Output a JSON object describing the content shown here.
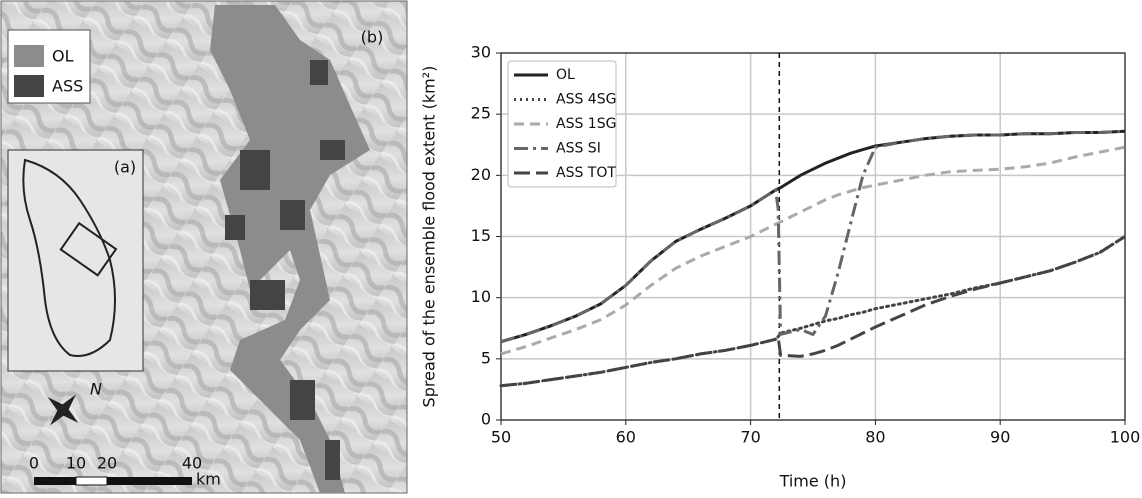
{
  "map": {
    "panel_label": "(b)",
    "inset_label": "(a)",
    "north": "N",
    "legend": [
      {
        "label": "OL",
        "color": "#8c8c8c"
      },
      {
        "label": "ASS",
        "color": "#444444"
      }
    ],
    "scale": [
      "0",
      "10",
      "20",
      "40"
    ],
    "scale_unit": "km"
  },
  "chart_data": {
    "type": "line",
    "xlabel": "Time (h)",
    "ylabel": "Spread of the ensemble flood extent (km²)",
    "x": [
      50,
      52,
      54,
      56,
      58,
      60,
      62,
      64,
      66,
      68,
      70,
      72,
      72.2,
      72.4,
      74,
      75,
      76,
      77,
      78,
      79,
      80,
      82,
      84,
      86,
      88,
      90,
      92,
      94,
      96,
      98,
      100
    ],
    "series": [
      {
        "name": "OL",
        "color": "#222222",
        "dash": "solid",
        "values": [
          6.4,
          7.0,
          7.7,
          8.5,
          9.5,
          11.0,
          13.0,
          14.6,
          15.6,
          16.5,
          17.5,
          18.8,
          18.9,
          19.0,
          20.0,
          20.5,
          21.0,
          21.4,
          21.8,
          22.1,
          22.4,
          22.7,
          23.0,
          23.2,
          23.3,
          23.3,
          23.4,
          23.4,
          23.5,
          23.5,
          23.6
        ]
      },
      {
        "name": "ASS 4SG",
        "color": "#444444",
        "dash": "dotted",
        "values": [
          2.8,
          3.0,
          3.3,
          3.6,
          3.9,
          4.3,
          4.7,
          5.0,
          5.4,
          5.7,
          6.1,
          6.6,
          6.8,
          7.1,
          7.5,
          7.8,
          8.1,
          8.3,
          8.6,
          8.8,
          9.1,
          9.5,
          9.9,
          10.3,
          10.8,
          11.2,
          11.7,
          12.2,
          12.9,
          13.7,
          15.0
        ]
      },
      {
        "name": "ASS 1SG",
        "color": "#aaaaaa",
        "dash": "dashed",
        "values": [
          5.4,
          6.0,
          6.7,
          7.4,
          8.2,
          9.4,
          11.0,
          12.4,
          13.4,
          14.2,
          15.0,
          16.0,
          16.1,
          16.2,
          17.0,
          17.5,
          18.0,
          18.4,
          18.7,
          19.0,
          19.2,
          19.6,
          20.0,
          20.3,
          20.4,
          20.5,
          20.7,
          21.0,
          21.5,
          21.9,
          22.3
        ]
      },
      {
        "name": "ASS SI",
        "color": "#666666",
        "dash": "dashdot",
        "values": [
          6.4,
          7.0,
          7.7,
          8.5,
          9.5,
          11.0,
          13.0,
          14.6,
          15.6,
          16.5,
          17.5,
          18.8,
          17.3,
          7.0,
          7.4,
          7.0,
          8.5,
          12.0,
          16.0,
          20.0,
          22.3,
          22.7,
          23.0,
          23.2,
          23.3,
          23.3,
          23.4,
          23.4,
          23.5,
          23.5,
          23.6
        ]
      },
      {
        "name": "ASS TOT",
        "color": "#444444",
        "dash": "longdash",
        "values": [
          2.8,
          3.0,
          3.3,
          3.6,
          3.9,
          4.3,
          4.7,
          5.0,
          5.4,
          5.7,
          6.1,
          6.6,
          6.8,
          5.3,
          5.2,
          5.4,
          5.7,
          6.1,
          6.6,
          7.1,
          7.6,
          8.5,
          9.4,
          10.1,
          10.7,
          11.2,
          11.7,
          12.2,
          12.9,
          13.7,
          15.0
        ]
      }
    ],
    "vline": 72.3,
    "xlim": [
      50,
      100
    ],
    "xticks": [
      50,
      60,
      70,
      80,
      90,
      100
    ],
    "ylim": [
      0,
      30
    ],
    "yticks": [
      0,
      5,
      10,
      15,
      20,
      25,
      30
    ],
    "grid": true,
    "legend": "upper left"
  }
}
